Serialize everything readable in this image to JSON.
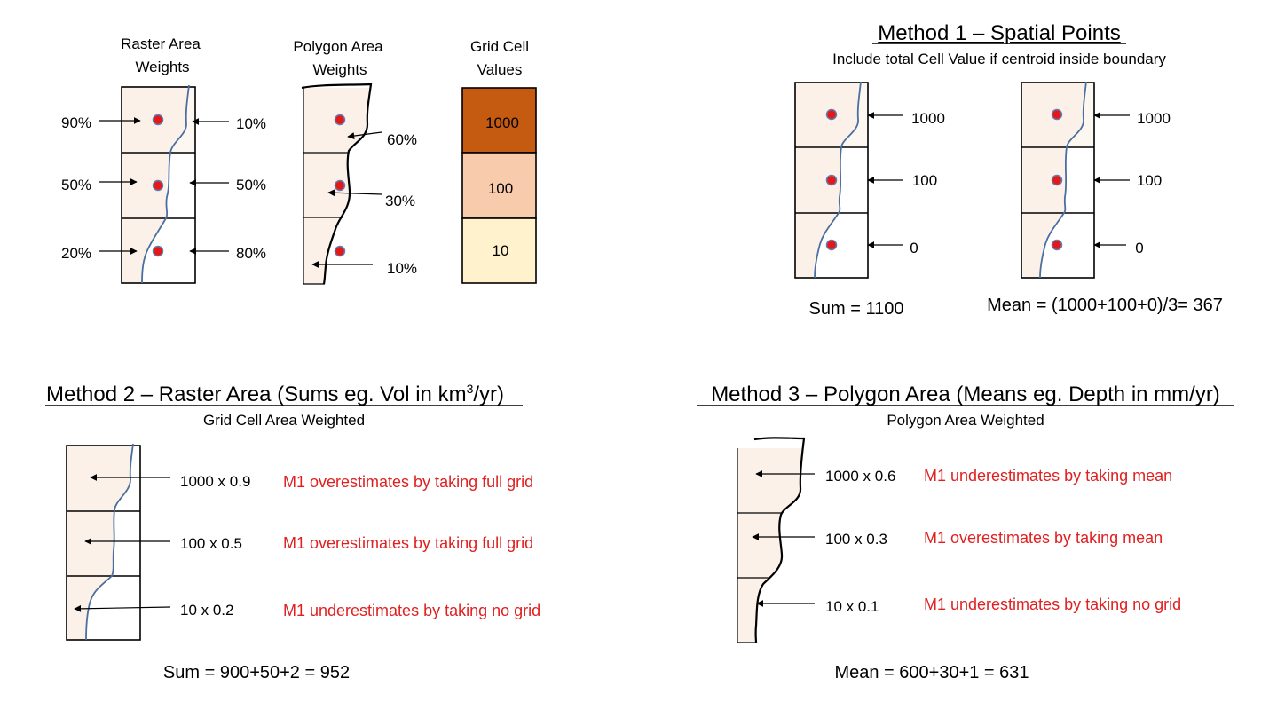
{
  "colors": {
    "cell_fill": "#fcf1e8",
    "cell_stroke": "#000000",
    "river": "#4a6fa0",
    "boundary": "#000000",
    "dot_fill": "#e51818",
    "dot_stroke": "#5e7fb2",
    "note_text": "#e02020",
    "grid_1000": "#c55a11",
    "grid_100": "#f8cbad",
    "grid_10": "#fff2cc"
  },
  "top": {
    "raster": {
      "title_line1": "Raster Area",
      "title_line2": "Weights",
      "left_labels": [
        "90%",
        "50%",
        "20%"
      ],
      "right_labels": [
        "10%",
        "50%",
        "80%"
      ]
    },
    "polygon": {
      "title_line1": "Polygon Area",
      "title_line2": "Weights",
      "labels": [
        "60%",
        "30%",
        "10%"
      ]
    },
    "grid": {
      "title_line1": "Grid Cell",
      "title_line2": "Values",
      "values": [
        "1000",
        "100",
        "10"
      ]
    }
  },
  "method1": {
    "title": "Method 1 – Spatial Points",
    "subtitle": "Include total Cell Value if centroid inside boundary",
    "left_values": [
      "1000",
      "100",
      "0"
    ],
    "right_values": [
      "1000",
      "100",
      "0"
    ],
    "sum_text": "Sum = 1100",
    "mean_text": "Mean = (1000+100+0)/3= 367"
  },
  "method2": {
    "title_main": "Method 2 – Raster Area (Sums eg. Vol in km",
    "title_sup": "3",
    "title_end": "/yr)",
    "subtitle": "Grid Cell Area Weighted",
    "labels": [
      "1000 x 0.9",
      "100 x 0.5",
      "10 x 0.2"
    ],
    "notes": [
      "M1 overestimates by taking full grid",
      "M1 overestimates by taking full grid",
      "M1 underestimates by taking no grid"
    ],
    "sum_text": "Sum = 900+50+2 = 952"
  },
  "method3": {
    "title": "Method 3 – Polygon Area (Means eg. Depth in mm/yr)",
    "subtitle": "Polygon Area Weighted",
    "labels": [
      "1000 x 0.6",
      "100 x 0.3",
      "10 x 0.1"
    ],
    "notes": [
      "M1 underestimates by taking mean",
      "M1 overestimates by taking mean",
      "M1 underestimates by taking no grid"
    ],
    "mean_text": "Mean = 600+30+1 = 631"
  }
}
